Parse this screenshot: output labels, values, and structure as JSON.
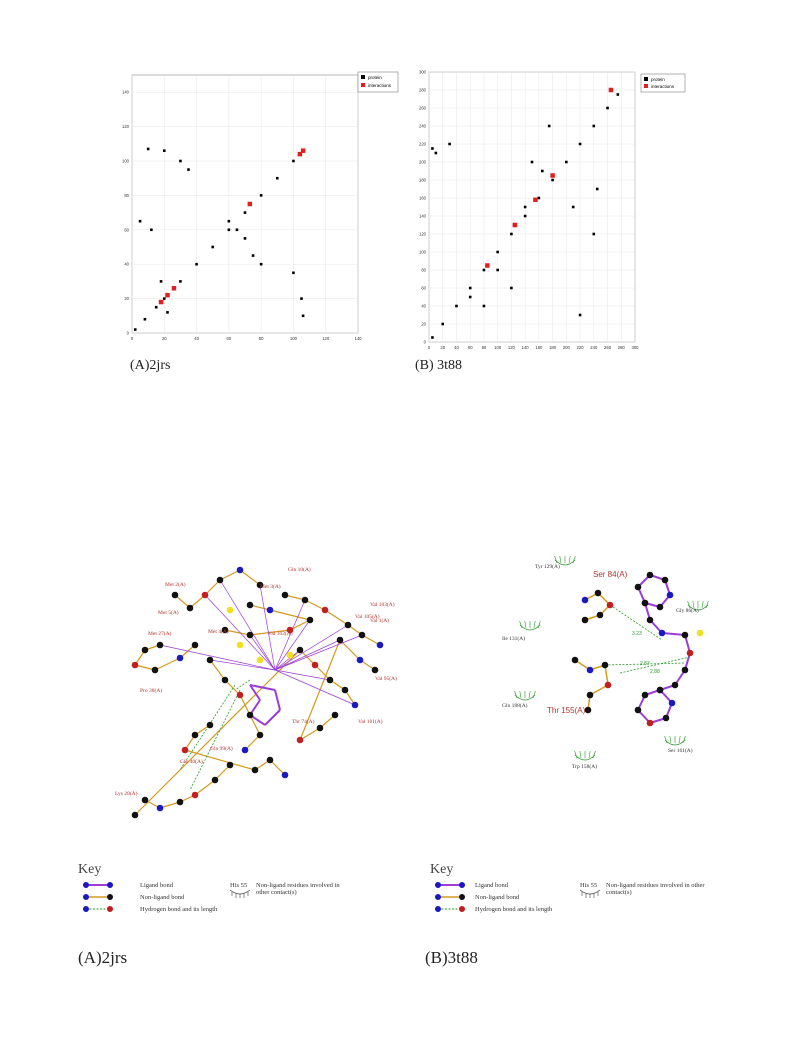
{
  "panels": {
    "plotA": {
      "caption": "(A)2jrs",
      "legend": {
        "protein": "protein",
        "interactions": "interactions"
      }
    },
    "plotB": {
      "caption": "(B) 3t88",
      "legend": {
        "protein": "protein",
        "interactions": "interactions"
      }
    }
  },
  "chart_data": [
    {
      "type": "scatter",
      "caption": "(A)2jrs",
      "xlim": [
        0,
        140
      ],
      "ylim": [
        0,
        150
      ],
      "xticks": [
        0,
        20,
        40,
        60,
        80,
        100,
        120,
        140
      ],
      "yticks": [
        0,
        20,
        40,
        60,
        80,
        100,
        120,
        140
      ],
      "grid": true,
      "legend_position": "top-right",
      "series": [
        {
          "name": "protein",
          "color": "#000000",
          "points": [
            [
              2,
              2
            ],
            [
              8,
              8
            ],
            [
              15,
              15
            ],
            [
              22,
              22
            ],
            [
              30,
              30
            ],
            [
              40,
              40
            ],
            [
              50,
              50
            ],
            [
              60,
              60
            ],
            [
              70,
              70
            ],
            [
              80,
              80
            ],
            [
              90,
              90
            ],
            [
              100,
              100
            ],
            [
              106,
              106
            ],
            [
              10,
              107
            ],
            [
              20,
              106
            ],
            [
              30,
              100
            ],
            [
              35,
              95
            ],
            [
              5,
              65
            ],
            [
              12,
              60
            ],
            [
              60,
              65
            ],
            [
              65,
              60
            ],
            [
              70,
              55
            ],
            [
              75,
              45
            ],
            [
              80,
              40
            ],
            [
              100,
              35
            ],
            [
              105,
              20
            ],
            [
              106,
              10
            ],
            [
              20,
              20
            ],
            [
              22,
              12
            ],
            [
              18,
              30
            ]
          ]
        },
        {
          "name": "interactions",
          "color": "#e02020",
          "points": [
            [
              18,
              18
            ],
            [
              22,
              22
            ],
            [
              26,
              26
            ],
            [
              73,
              75
            ],
            [
              104,
              104
            ],
            [
              106,
              106
            ]
          ]
        }
      ]
    },
    {
      "type": "scatter",
      "caption": "(B) 3t88",
      "xlim": [
        0,
        300
      ],
      "ylim": [
        0,
        300
      ],
      "xticks": [
        0,
        20,
        40,
        60,
        80,
        100,
        120,
        140,
        160,
        180,
        200,
        220,
        240,
        260,
        280,
        300
      ],
      "yticks": [
        0,
        20,
        40,
        60,
        80,
        100,
        120,
        140,
        160,
        180,
        200,
        220,
        240,
        260,
        280,
        300
      ],
      "grid": true,
      "legend_position": "top-right",
      "series": [
        {
          "name": "protein",
          "color": "#000000",
          "points": [
            [
              5,
              5
            ],
            [
              20,
              20
            ],
            [
              40,
              40
            ],
            [
              60,
              60
            ],
            [
              80,
              80
            ],
            [
              100,
              100
            ],
            [
              120,
              120
            ],
            [
              140,
              140
            ],
            [
              160,
              160
            ],
            [
              180,
              180
            ],
            [
              200,
              200
            ],
            [
              220,
              220
            ],
            [
              240,
              240
            ],
            [
              260,
              260
            ],
            [
              275,
              275
            ],
            [
              5,
              215
            ],
            [
              10,
              210
            ],
            [
              30,
              220
            ],
            [
              60,
              50
            ],
            [
              80,
              40
            ],
            [
              100,
              80
            ],
            [
              120,
              60
            ],
            [
              140,
              150
            ],
            [
              150,
              200
            ],
            [
              165,
              190
            ],
            [
              175,
              240
            ],
            [
              210,
              150
            ],
            [
              220,
              30
            ],
            [
              240,
              120
            ],
            [
              245,
              170
            ]
          ]
        },
        {
          "name": "interactions",
          "color": "#e02020",
          "points": [
            [
              85,
              85
            ],
            [
              125,
              130
            ],
            [
              155,
              158
            ],
            [
              180,
              185
            ],
            [
              265,
              280
            ]
          ]
        }
      ]
    }
  ],
  "diagrams": {
    "A": {
      "caption": "(A)2jrs",
      "residues": [
        "Met 2(A)",
        "Met 3(A)",
        "Gln 10(A)",
        "Met 5(A)",
        "Val 105(A)",
        "Val 103(A)",
        "Met 27(A)",
        "Met 4(A)",
        "Val 102(A)",
        "Pro 38(A)",
        "Val 1(A)",
        "Val 95(A)",
        "Thr 74(A)",
        "Val 101(A)",
        "Gln 40(A)",
        "Gln 99(A)",
        "Lys 28(A)",
        "Val 103(A)"
      ],
      "key": {
        "title": "Key",
        "ligand_bond": "Ligand bond",
        "non_ligand_bond": "Non-ligand bond",
        "hydrogen_bond": "Hydrogen bond and its length",
        "hydrophobic_sample": "His 55",
        "hydrophobic_text": "Non-ligand residues involved in other contact(s)"
      }
    },
    "B": {
      "caption": "(B)3t88",
      "residues": [
        "Tyr 129(A)",
        "Ser 84(A)",
        "Gly 86(A)",
        "Ile 131(A)",
        "Gln 188(A)",
        "Thr 155(A)",
        "Ser 161(A)",
        "Trp 158(A)"
      ],
      "hbond_lengths": [
        "3.23",
        "2.87",
        "2.88"
      ],
      "key": {
        "title": "Key",
        "ligand_bond": "Ligand bond",
        "non_ligand_bond": "Non-ligand bond",
        "hydrogen_bond": "Hydrogen bond and its length",
        "hydrophobic_sample": "His 55",
        "hydrophobic_text": "Non-ligand residues involved in other contact(s)"
      }
    }
  }
}
